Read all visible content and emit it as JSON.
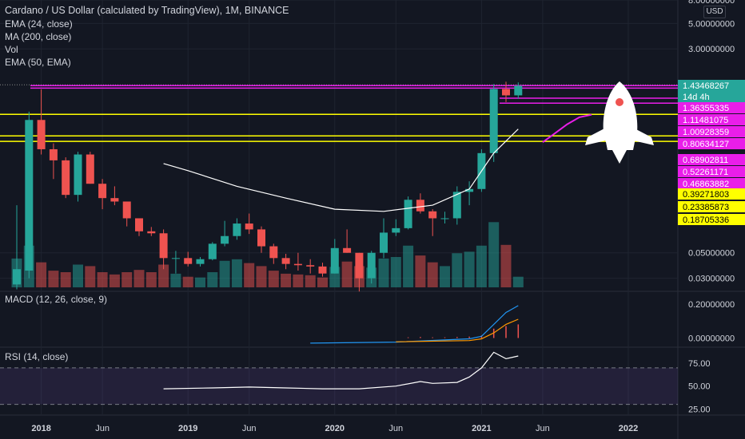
{
  "header": {
    "title": "Cardano / US Dollar (calculated by TradingView), 1M, BINANCE",
    "indicators": [
      "EMA (24, close)",
      "MA (200, close)",
      "Vol",
      "EMA (50, EMA)"
    ],
    "currency": "USD"
  },
  "colors": {
    "background": "#131722",
    "up": "#26a69a",
    "down": "#ef5350",
    "magenta": "#e91ee9",
    "yellow": "#ffff00",
    "grid": "#1f2430",
    "text": "#d1d4dc"
  },
  "chart_data": [
    {
      "type": "candlestick",
      "title": "Cardano / US Dollar (calculated by TradingView), 1M, BINANCE",
      "scale": "log",
      "ylim": [
        0.025,
        8.0
      ],
      "y_ticks": [
        "8.00000000",
        "5.00000000",
        "3.00000000",
        "0.05000000",
        "0.03000000"
      ],
      "x_ticks": [
        "2018",
        "Jun",
        "2019",
        "Jun",
        "2020",
        "Jun",
        "2021",
        "Jun",
        "2022"
      ],
      "candles": [
        {
          "m": "2017-11",
          "o": 0.0265,
          "h": 0.13,
          "l": 0.024,
          "c": 0.036,
          "v": 0.38
        },
        {
          "m": "2017-12",
          "o": 0.035,
          "h": 0.85,
          "l": 0.03,
          "c": 0.72,
          "v": 0.55
        },
        {
          "m": "2018-01",
          "o": 0.72,
          "h": 1.33,
          "l": 0.36,
          "c": 0.4,
          "v": 0.33
        },
        {
          "m": "2018-02",
          "o": 0.4,
          "h": 0.45,
          "l": 0.22,
          "c": 0.32,
          "v": 0.22
        },
        {
          "m": "2018-03",
          "o": 0.32,
          "h": 0.34,
          "l": 0.15,
          "c": 0.16,
          "v": 0.2
        },
        {
          "m": "2018-04",
          "o": 0.16,
          "h": 0.38,
          "l": 0.14,
          "c": 0.36,
          "v": 0.3
        },
        {
          "m": "2018-05",
          "o": 0.36,
          "h": 0.38,
          "l": 0.2,
          "c": 0.2,
          "v": 0.28
        },
        {
          "m": "2018-06",
          "o": 0.2,
          "h": 0.22,
          "l": 0.12,
          "c": 0.15,
          "v": 0.2
        },
        {
          "m": "2018-07",
          "o": 0.15,
          "h": 0.19,
          "l": 0.13,
          "c": 0.14,
          "v": 0.17
        },
        {
          "m": "2018-08",
          "o": 0.14,
          "h": 0.14,
          "l": 0.085,
          "c": 0.1,
          "v": 0.2
        },
        {
          "m": "2018-09",
          "o": 0.1,
          "h": 0.1,
          "l": 0.07,
          "c": 0.077,
          "v": 0.23
        },
        {
          "m": "2018-10",
          "o": 0.077,
          "h": 0.084,
          "l": 0.07,
          "c": 0.074,
          "v": 0.2
        },
        {
          "m": "2018-11",
          "o": 0.074,
          "h": 0.08,
          "l": 0.036,
          "c": 0.045,
          "v": 0.3
        },
        {
          "m": "2018-12",
          "o": 0.045,
          "h": 0.052,
          "l": 0.033,
          "c": 0.045,
          "v": 0.18
        },
        {
          "m": "2019-01",
          "o": 0.045,
          "h": 0.051,
          "l": 0.038,
          "c": 0.04,
          "v": 0.14
        },
        {
          "m": "2019-02",
          "o": 0.04,
          "h": 0.046,
          "l": 0.038,
          "c": 0.044,
          "v": 0.13
        },
        {
          "m": "2019-03",
          "o": 0.044,
          "h": 0.062,
          "l": 0.043,
          "c": 0.06,
          "v": 0.2
        },
        {
          "m": "2019-04",
          "o": 0.06,
          "h": 0.095,
          "l": 0.057,
          "c": 0.07,
          "v": 0.35
        },
        {
          "m": "2019-05",
          "o": 0.07,
          "h": 0.1,
          "l": 0.065,
          "c": 0.09,
          "v": 0.37
        },
        {
          "m": "2019-06",
          "o": 0.09,
          "h": 0.11,
          "l": 0.073,
          "c": 0.08,
          "v": 0.32
        },
        {
          "m": "2019-07",
          "o": 0.08,
          "h": 0.085,
          "l": 0.05,
          "c": 0.057,
          "v": 0.28
        },
        {
          "m": "2019-08",
          "o": 0.057,
          "h": 0.06,
          "l": 0.04,
          "c": 0.045,
          "v": 0.22
        },
        {
          "m": "2019-09",
          "o": 0.045,
          "h": 0.049,
          "l": 0.036,
          "c": 0.04,
          "v": 0.18
        },
        {
          "m": "2019-10",
          "o": 0.04,
          "h": 0.05,
          "l": 0.035,
          "c": 0.039,
          "v": 0.17
        },
        {
          "m": "2019-11",
          "o": 0.039,
          "h": 0.044,
          "l": 0.033,
          "c": 0.038,
          "v": 0.16
        },
        {
          "m": "2019-12",
          "o": 0.038,
          "h": 0.041,
          "l": 0.031,
          "c": 0.033,
          "v": 0.13
        },
        {
          "m": "2020-01",
          "o": 0.033,
          "h": 0.066,
          "l": 0.033,
          "c": 0.055,
          "v": 0.27
        },
        {
          "m": "2020-02",
          "o": 0.055,
          "h": 0.08,
          "l": 0.05,
          "c": 0.05,
          "v": 0.34
        },
        {
          "m": "2020-03",
          "o": 0.05,
          "h": 0.05,
          "l": 0.023,
          "c": 0.03,
          "v": 0.28
        },
        {
          "m": "2020-04",
          "o": 0.03,
          "h": 0.052,
          "l": 0.027,
          "c": 0.05,
          "v": 0.26
        },
        {
          "m": "2020-05",
          "o": 0.05,
          "h": 0.1,
          "l": 0.045,
          "c": 0.075,
          "v": 0.38
        },
        {
          "m": "2020-06",
          "o": 0.075,
          "h": 0.098,
          "l": 0.07,
          "c": 0.082,
          "v": 0.4
        },
        {
          "m": "2020-07",
          "o": 0.082,
          "h": 0.155,
          "l": 0.08,
          "c": 0.145,
          "v": 0.55
        },
        {
          "m": "2020-08",
          "o": 0.145,
          "h": 0.165,
          "l": 0.11,
          "c": 0.115,
          "v": 0.42
        },
        {
          "m": "2020-09",
          "o": 0.115,
          "h": 0.12,
          "l": 0.07,
          "c": 0.1,
          "v": 0.33
        },
        {
          "m": "2020-10",
          "o": 0.1,
          "h": 0.114,
          "l": 0.09,
          "c": 0.1,
          "v": 0.28
        },
        {
          "m": "2020-11",
          "o": 0.1,
          "h": 0.19,
          "l": 0.088,
          "c": 0.17,
          "v": 0.45
        },
        {
          "m": "2020-12",
          "o": 0.17,
          "h": 0.21,
          "l": 0.13,
          "c": 0.18,
          "v": 0.47
        },
        {
          "m": "2021-01",
          "o": 0.18,
          "h": 0.4,
          "l": 0.17,
          "c": 0.37,
          "v": 0.55
        },
        {
          "m": "2021-02",
          "o": 0.37,
          "h": 1.48,
          "l": 0.31,
          "c": 1.34,
          "v": 0.86
        },
        {
          "m": "2021-03",
          "o": 1.34,
          "h": 1.55,
          "l": 1.03,
          "c": 1.18,
          "v": 0.56
        },
        {
          "m": "2021-04",
          "o": 1.18,
          "h": 1.53,
          "l": 1.1,
          "c": 1.43,
          "v": 0.14
        }
      ],
      "lines": [
        {
          "name": "EMA (24, close)",
          "color": "#ffffff",
          "points": [
            [
              "2018-11",
              0.3
            ],
            [
              "2019-01",
              0.26
            ],
            [
              "2019-05",
              0.19
            ],
            [
              "2019-09",
              0.15
            ],
            [
              "2020-01",
              0.12
            ],
            [
              "2020-05",
              0.115
            ],
            [
              "2020-09",
              0.13
            ],
            [
              "2020-12",
              0.18
            ],
            [
              "2021-02",
              0.37
            ],
            [
              "2021-04",
              0.6
            ]
          ]
        },
        {
          "name": "EMA (50, EMA)",
          "color": "#e91ee9",
          "points": [
            [
              "2021-06",
              0.46
            ],
            [
              "2021-07",
              0.55
            ],
            [
              "2021-08",
              0.66
            ],
            [
              "2021-09",
              0.76
            ],
            [
              "2021-10",
              0.8
            ]
          ]
        }
      ],
      "horizontal_levels": [
        {
          "value": 1.43468267,
          "color": "#e91ee9"
        },
        {
          "value": 1.36355335,
          "color": "#e91ee9"
        },
        {
          "value": 1.11481075,
          "color": "#e91ee9"
        },
        {
          "value": 1.00928359,
          "color": "#e91ee9"
        },
        {
          "value": 0.80634127,
          "color": "#ffff00"
        },
        {
          "value": 0.52261171,
          "color": "#ffff00"
        },
        {
          "value": 0.46863882,
          "color": "#ffff00"
        }
      ],
      "price_labels": [
        {
          "text": "1.43468267",
          "color": "#26a69a"
        },
        {
          "text": "14d 4h",
          "color": "#26a69a"
        },
        {
          "text": "1.36355335",
          "color": "#e91ee9"
        },
        {
          "text": "1.11481075",
          "color": "#e91ee9"
        },
        {
          "text": "1.00928359",
          "color": "#e91ee9"
        },
        {
          "text": "0.80634127",
          "color": "#e91ee9"
        },
        {
          "text": "0.68902811",
          "color": "#e91ee9"
        },
        {
          "text": "0.52261171",
          "color": "#e91ee9"
        },
        {
          "text": "0.46863882",
          "color": "#e91ee9"
        },
        {
          "text": "0.39271803",
          "color": "#ffff00"
        },
        {
          "text": "0.23385873",
          "color": "#ffff00"
        },
        {
          "text": "0.18705336",
          "color": "#ffff00"
        }
      ]
    },
    {
      "type": "line",
      "title": "MACD (12, 26, close, 9)",
      "y_ticks": [
        "0.20000000",
        "0.00000000"
      ],
      "ylim": [
        -0.04,
        0.26
      ],
      "series": [
        {
          "name": "MACD",
          "color": "#2196f3",
          "points": [
            [
              "2019-11",
              -0.03
            ],
            [
              "2020-06",
              -0.024
            ],
            [
              "2020-12",
              -0.005
            ],
            [
              "2021-01",
              0.01
            ],
            [
              "2021-02",
              0.08
            ],
            [
              "2021-03",
              0.15
            ],
            [
              "2021-04",
              0.19
            ]
          ]
        },
        {
          "name": "Signal",
          "color": "#ff9800",
          "points": [
            [
              "2020-06",
              -0.022
            ],
            [
              "2020-12",
              -0.015
            ],
            [
              "2021-01",
              -0.005
            ],
            [
              "2021-02",
              0.03
            ],
            [
              "2021-03",
              0.08
            ],
            [
              "2021-04",
              0.11
            ]
          ]
        }
      ],
      "histogram": [
        {
          "m": "2020-07",
          "v": 0.004
        },
        {
          "m": "2020-08",
          "v": 0.006
        },
        {
          "m": "2020-09",
          "v": 0.004
        },
        {
          "m": "2020-10",
          "v": 0.004
        },
        {
          "m": "2020-11",
          "v": 0.006
        },
        {
          "m": "2020-12",
          "v": 0.008
        },
        {
          "m": "2021-01",
          "v": 0.015
        },
        {
          "m": "2021-02",
          "v": 0.055
        },
        {
          "m": "2021-03",
          "v": 0.07
        },
        {
          "m": "2021-04",
          "v": 0.08
        }
      ]
    },
    {
      "type": "line",
      "title": "RSI (14, close)",
      "y_ticks": [
        "75.00",
        "50.00",
        "25.00"
      ],
      "ylim": [
        20,
        90
      ],
      "band": [
        30,
        70
      ],
      "series": [
        {
          "name": "RSI",
          "color": "#ffffff",
          "points": [
            [
              "2018-11",
              47
            ],
            [
              "2019-03",
              48
            ],
            [
              "2019-06",
              49
            ],
            [
              "2019-09",
              48
            ],
            [
              "2019-12",
              47
            ],
            [
              "2020-03",
              47
            ],
            [
              "2020-06",
              50
            ],
            [
              "2020-08",
              55
            ],
            [
              "2020-09",
              53
            ],
            [
              "2020-11",
              54
            ],
            [
              "2020-12",
              60
            ],
            [
              "2021-01",
              70
            ],
            [
              "2021-02",
              87
            ],
            [
              "2021-03",
              80
            ],
            [
              "2021-04",
              83
            ]
          ]
        }
      ]
    }
  ]
}
